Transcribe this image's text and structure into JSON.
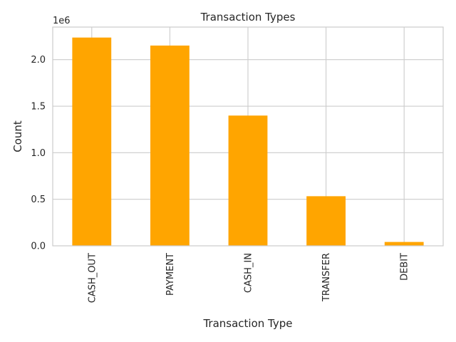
{
  "chart_data": {
    "type": "bar",
    "title": "Transaction Types",
    "xlabel": "Transaction Type",
    "ylabel": "Count",
    "offset_label": "1e6",
    "categories": [
      "CASH_OUT",
      "PAYMENT",
      "CASH_IN",
      "TRANSFER",
      "DEBIT"
    ],
    "values": [
      2237500,
      2151495,
      1399284,
      532909,
      41432
    ],
    "ylim": [
      0,
      2.35
    ],
    "yticks": [
      0.0,
      0.5,
      1.0,
      1.5,
      2.0
    ],
    "ytick_labels": [
      "0.0",
      "0.5",
      "1.0",
      "1.5",
      "2.0"
    ],
    "bar_color": "#ffa500",
    "grid": true,
    "grid_color": "#cccccc",
    "legend": "none"
  }
}
